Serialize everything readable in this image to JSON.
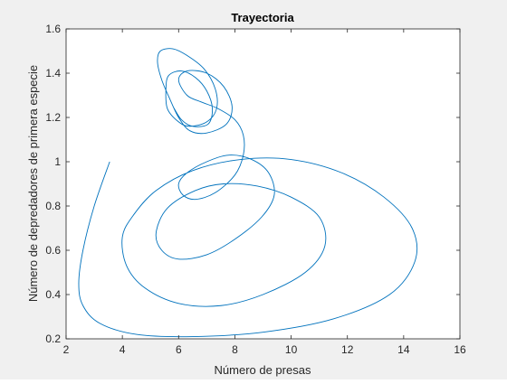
{
  "chart_data": {
    "type": "line",
    "title": "Trayectoria",
    "xlabel": "Número de presas",
    "ylabel": "Número de depredadores de primera especie",
    "xlim": [
      2,
      16
    ],
    "ylim": [
      0.2,
      1.6
    ],
    "xticks": [
      2,
      4,
      6,
      8,
      10,
      12,
      14,
      16
    ],
    "yticks": [
      0.2,
      0.4,
      0.6,
      0.8,
      1.0,
      1.2,
      1.4,
      1.6
    ],
    "xtick_labels": [
      "2",
      "4",
      "6",
      "8",
      "10",
      "12",
      "14",
      "16"
    ],
    "ytick_labels": [
      "0.2",
      "0.4",
      "0.6",
      "0.8",
      "1",
      "1.2",
      "1.4",
      "1.6"
    ],
    "grid": false,
    "line_color": "#0072bd",
    "series": [
      {
        "x": [
          3.55,
          3.0,
          2.6,
          2.45,
          2.6,
          3.2,
          4.5,
          6.5,
          9.0,
          11.5,
          13.5,
          14.4,
          14.3,
          13.3,
          11.8,
          10.0,
          8.2,
          6.5,
          5.2,
          4.4,
          4.0,
          4.15,
          4.8,
          6.0,
          7.5,
          9.0,
          10.5,
          11.2,
          11.0,
          10.0,
          8.8,
          7.6,
          6.6,
          5.6,
          5.2,
          5.4,
          6.0,
          7.0,
          8.0,
          8.95,
          9.4,
          9.2,
          8.6,
          7.8,
          7.0,
          6.3,
          6.0,
          6.15,
          6.6,
          7.3,
          8.0,
          8.3,
          8.3,
          8.0,
          7.4,
          6.8,
          6.3,
          6.0,
          6.3,
          7.0,
          7.6,
          7.9,
          7.7,
          7.0,
          6.4,
          6.0,
          5.7,
          5.4,
          5.25,
          5.35,
          5.8,
          6.3,
          6.9,
          7.3,
          7.35,
          7.0,
          6.4,
          6.0,
          5.6,
          5.55,
          5.65,
          6.1,
          6.6,
          7.0,
          7.2,
          7.05,
          6.5,
          6.1,
          5.8
        ],
        "y": [
          1.0,
          0.8,
          0.6,
          0.45,
          0.35,
          0.27,
          0.22,
          0.21,
          0.23,
          0.29,
          0.4,
          0.55,
          0.7,
          0.84,
          0.95,
          1.01,
          1.01,
          0.96,
          0.87,
          0.76,
          0.66,
          0.53,
          0.43,
          0.36,
          0.35,
          0.4,
          0.5,
          0.62,
          0.75,
          0.84,
          0.89,
          0.9,
          0.87,
          0.79,
          0.68,
          0.6,
          0.56,
          0.58,
          0.65,
          0.75,
          0.85,
          0.95,
          1.01,
          1.03,
          1.0,
          0.95,
          0.9,
          0.85,
          0.83,
          0.86,
          0.94,
          1.03,
          1.12,
          1.19,
          1.24,
          1.27,
          1.3,
          1.37,
          1.41,
          1.4,
          1.34,
          1.25,
          1.17,
          1.13,
          1.14,
          1.2,
          1.28,
          1.37,
          1.45,
          1.5,
          1.51,
          1.48,
          1.42,
          1.33,
          1.24,
          1.18,
          1.16,
          1.18,
          1.24,
          1.33,
          1.39,
          1.41,
          1.38,
          1.32,
          1.24,
          1.17,
          1.16,
          1.19,
          1.25
        ]
      }
    ]
  }
}
